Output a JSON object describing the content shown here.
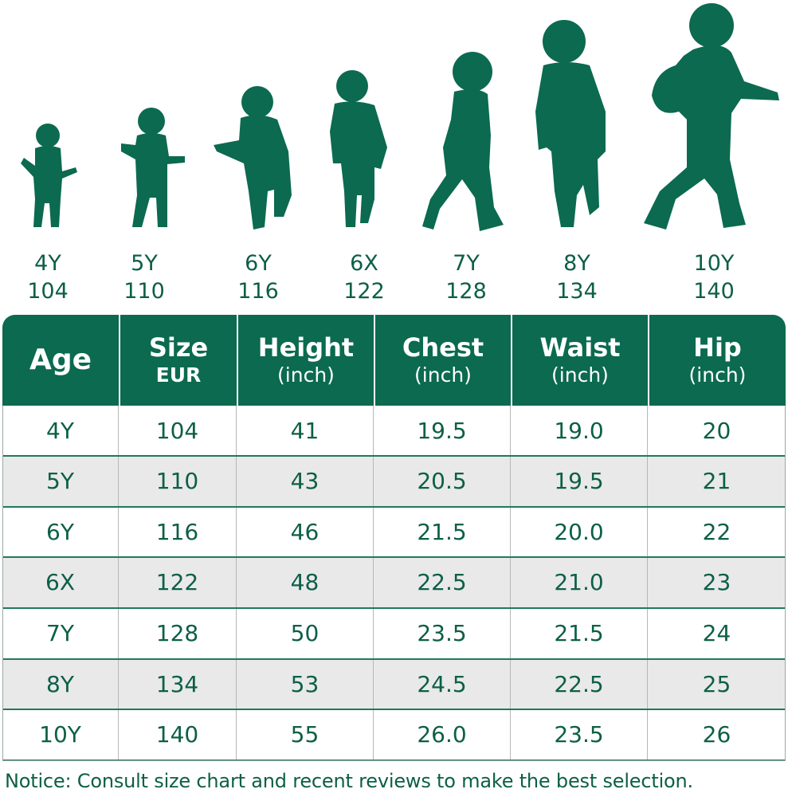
{
  "figures": [
    {
      "age": "4Y",
      "size": "104"
    },
    {
      "age": "5Y",
      "size": "110"
    },
    {
      "age": "6Y",
      "size": "116"
    },
    {
      "age": "6X",
      "size": "122"
    },
    {
      "age": "7Y",
      "size": "128"
    },
    {
      "age": "8Y",
      "size": "134"
    },
    {
      "age": "10Y",
      "size": "140"
    }
  ],
  "colors": {
    "brand": "#0b6a4f",
    "text": "#0d5f47",
    "stripe": "#e9e9e9"
  },
  "table": {
    "headers": [
      {
        "main": "Age",
        "sub": ""
      },
      {
        "main": "Size",
        "sub": "EUR"
      },
      {
        "main": "Height",
        "sub": "(inch)"
      },
      {
        "main": "Chest",
        "sub": "(inch)"
      },
      {
        "main": "Waist",
        "sub": "(inch)"
      },
      {
        "main": "Hip",
        "sub": "(inch)"
      }
    ],
    "rows": [
      [
        "4Y",
        "104",
        "41",
        "19.5",
        "19.0",
        "20"
      ],
      [
        "5Y",
        "110",
        "43",
        "20.5",
        "19.5",
        "21"
      ],
      [
        "6Y",
        "116",
        "46",
        "21.5",
        "20.0",
        "22"
      ],
      [
        "6X",
        "122",
        "48",
        "22.5",
        "21.0",
        "23"
      ],
      [
        "7Y",
        "128",
        "50",
        "23.5",
        "21.5",
        "24"
      ],
      [
        "8Y",
        "134",
        "53",
        "24.5",
        "22.5",
        "25"
      ],
      [
        "10Y",
        "140",
        "55",
        "26.0",
        "23.5",
        "26"
      ]
    ]
  },
  "notice": "Notice: Consult size chart and recent reviews to make the best selection."
}
